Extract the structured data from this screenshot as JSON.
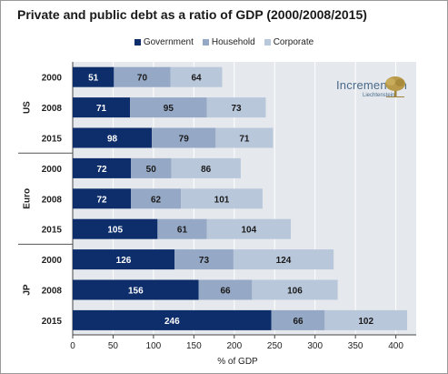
{
  "chart_data": {
    "type": "bar",
    "orientation": "horizontal",
    "stacked": true,
    "title": "Private and public debt as a ratio of GDP (2000/2008/2015)",
    "xlabel": "% of GDP",
    "xlim": [
      0,
      420
    ],
    "xticks": [
      "0",
      "50",
      "100",
      "150",
      "200",
      "250",
      "300",
      "350",
      "400"
    ],
    "legend_position": "top",
    "groups": [
      {
        "name": "US",
        "categories": [
          "2000",
          "2008",
          "2015"
        ]
      },
      {
        "name": "Euro",
        "categories": [
          "2000",
          "2008",
          "2015"
        ]
      },
      {
        "name": "JP",
        "categories": [
          "2000",
          "2008",
          "2015"
        ]
      }
    ],
    "series": [
      {
        "name": "Government",
        "color": "#0d2e6b",
        "values": [
          51,
          71,
          98,
          72,
          72,
          105,
          126,
          156,
          246
        ]
      },
      {
        "name": "Household",
        "color": "#95a8c6",
        "values": [
          70,
          95,
          79,
          50,
          62,
          61,
          73,
          66,
          66
        ]
      },
      {
        "name": "Corporate",
        "color": "#b9c7db",
        "values": [
          64,
          73,
          71,
          86,
          101,
          104,
          124,
          106,
          102
        ]
      }
    ]
  },
  "logo": {
    "name": "Incrementum",
    "subtitle": "Liechtenstein",
    "icon": "tree-icon"
  }
}
